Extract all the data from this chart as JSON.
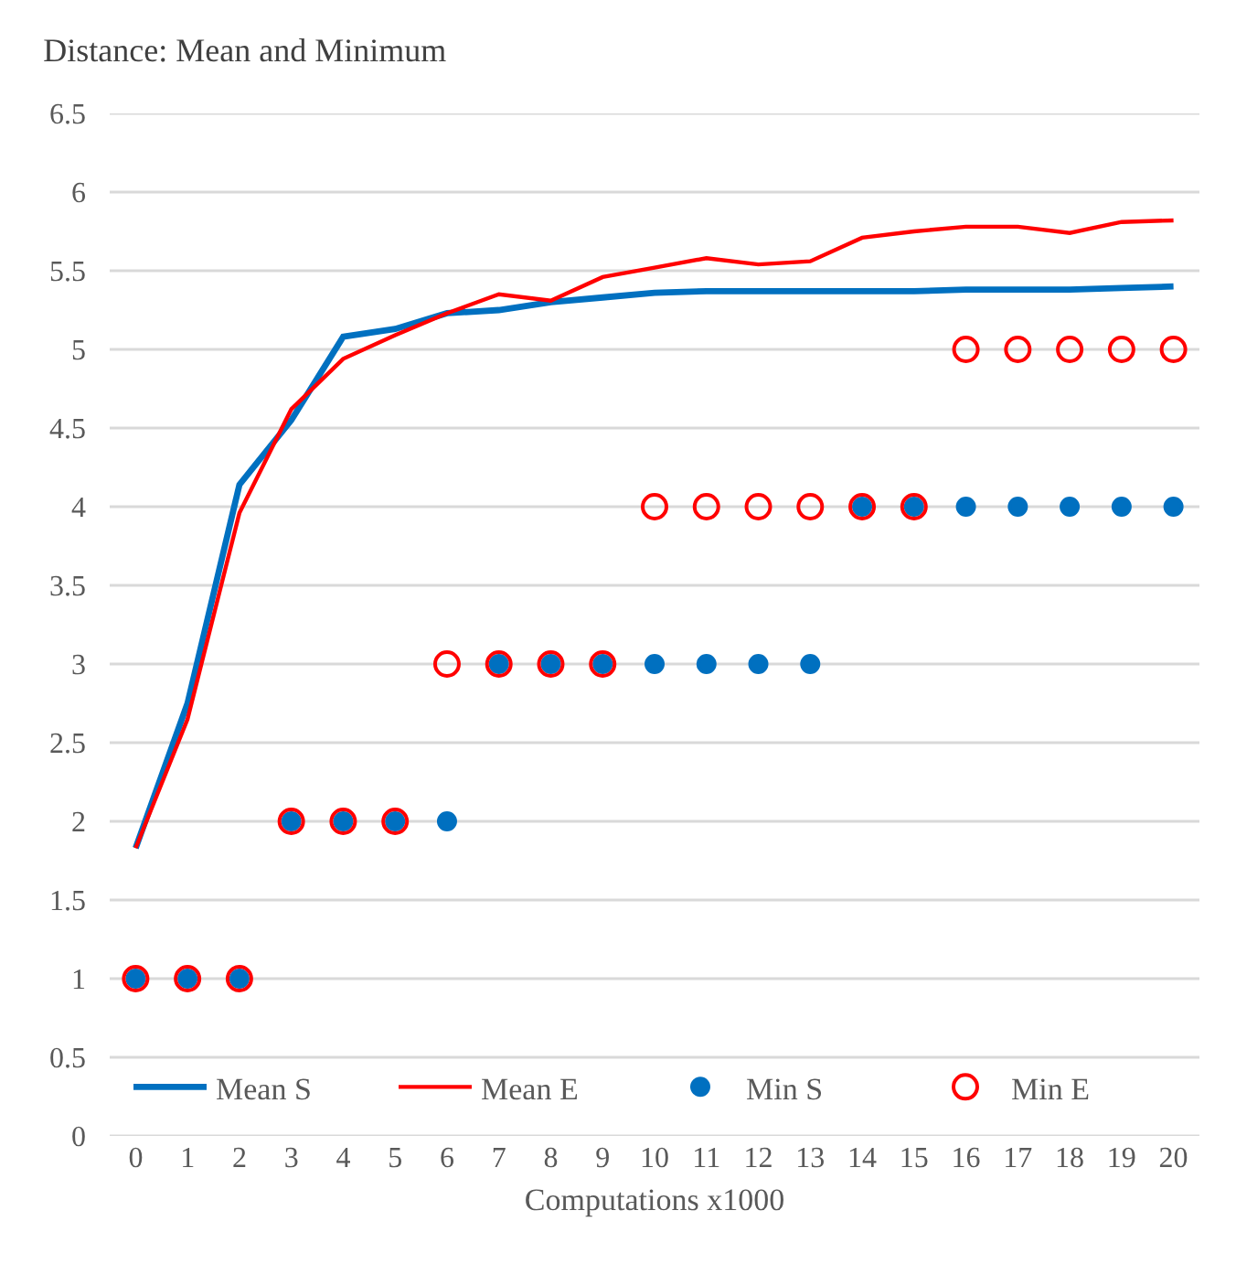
{
  "chart_data": {
    "type": "line",
    "title": "Distance: Mean and Minimum",
    "xlabel": "Computations x1000",
    "x": [
      0,
      1,
      2,
      3,
      4,
      5,
      6,
      7,
      8,
      9,
      10,
      11,
      12,
      13,
      14,
      15,
      16,
      17,
      18,
      19,
      20
    ],
    "series": [
      {
        "name": "Mean S",
        "type": "line",
        "color": "#0070c0",
        "marker": "none",
        "values": [
          1.83,
          2.75,
          4.14,
          4.55,
          5.08,
          5.13,
          5.23,
          5.25,
          5.3,
          5.33,
          5.36,
          5.37,
          5.37,
          5.37,
          5.37,
          5.37,
          5.38,
          5.38,
          5.38,
          5.39,
          5.4
        ]
      },
      {
        "name": "Mean E",
        "type": "line",
        "color": "#ff0000",
        "marker": "none",
        "values": [
          1.83,
          2.65,
          3.96,
          4.62,
          4.94,
          5.09,
          5.23,
          5.35,
          5.31,
          5.46,
          5.52,
          5.58,
          5.54,
          5.56,
          5.71,
          5.75,
          5.78,
          5.78,
          5.74,
          5.81,
          5.82
        ]
      },
      {
        "name": "Min S",
        "type": "scatter",
        "color": "#0070c0",
        "marker": "circle",
        "values": [
          1,
          1,
          1,
          2,
          2,
          2,
          2,
          3,
          3,
          3,
          3,
          3,
          3,
          3,
          4,
          4,
          4,
          4,
          4,
          4,
          4
        ]
      },
      {
        "name": "Min E",
        "type": "scatter",
        "color": "#ff0000",
        "marker": "circle-open",
        "values": [
          1,
          1,
          1,
          2,
          2,
          2,
          3,
          3,
          3,
          3,
          4,
          4,
          4,
          4,
          4,
          4,
          5,
          5,
          5,
          5,
          5
        ]
      }
    ],
    "xlim": [
      -0.5,
      20.5
    ],
    "xticks": [
      0,
      1,
      2,
      3,
      4,
      5,
      6,
      7,
      8,
      9,
      10,
      11,
      12,
      13,
      14,
      15,
      16,
      17,
      18,
      19,
      20
    ],
    "ylim": [
      0,
      6.5
    ],
    "yticks": [
      0,
      0.5,
      1,
      1.5,
      2,
      2.5,
      3,
      3.5,
      4,
      4.5,
      5,
      5.5,
      6,
      6.5
    ],
    "grid": "y",
    "legend": "bottom"
  }
}
